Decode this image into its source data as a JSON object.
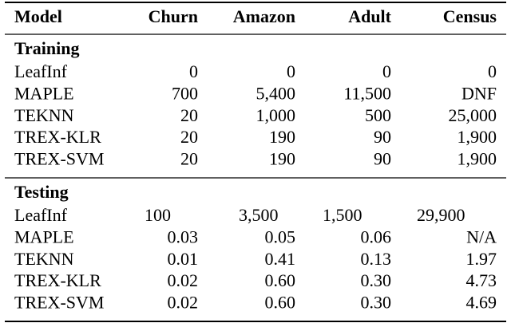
{
  "table": {
    "header": [
      "Model",
      "Churn",
      "Amazon",
      "Adult",
      "Census"
    ],
    "sections": [
      {
        "title": "Training",
        "rows": [
          [
            "LeafInf",
            "0",
            "0",
            "0",
            "0"
          ],
          [
            "MAPLE",
            "700",
            "5,400",
            "11,500",
            "DNF"
          ],
          [
            "TEKNN",
            "20",
            "1,000",
            "500",
            "25,000"
          ],
          [
            "TREX-KLR",
            "20",
            "190",
            "90",
            "1,900"
          ],
          [
            "TREX-SVM",
            "20",
            "190",
            "90",
            "1,900"
          ]
        ]
      },
      {
        "title": "Testing",
        "rows": [
          [
            "LeafInf",
            "100",
            "3,500",
            "1,500",
            "29,900"
          ],
          [
            "MAPLE",
            "0.03",
            "0.05",
            "0.06",
            "N/A"
          ],
          [
            "TEKNN",
            "0.01",
            "0.41",
            "0.13",
            "1.97"
          ],
          [
            "TREX-KLR",
            "0.02",
            "0.60",
            "0.30",
            "4.73"
          ],
          [
            "TREX-SVM",
            "0.02",
            "0.60",
            "0.30",
            "4.69"
          ]
        ]
      }
    ]
  }
}
